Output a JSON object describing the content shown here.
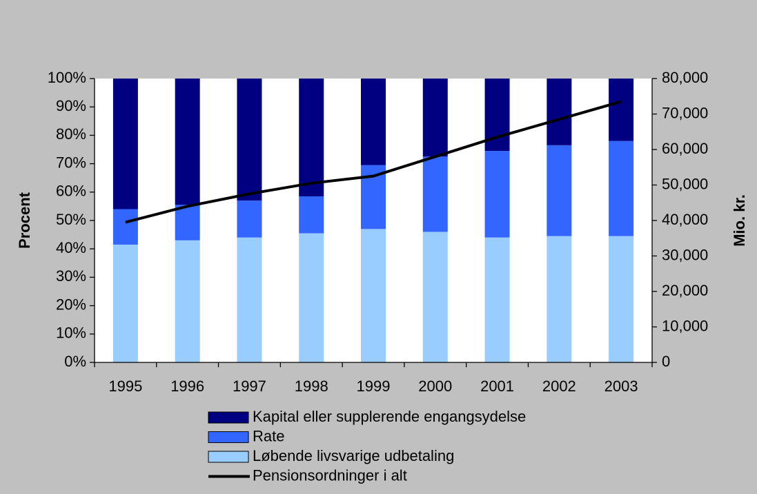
{
  "chart_data": {
    "type": "stacked_bar_line",
    "categories": [
      "1995",
      "1996",
      "1997",
      "1998",
      "1999",
      "2000",
      "2001",
      "2002",
      "2003"
    ],
    "series": [
      {
        "name": "Kapital eller supplerende engangsydelse",
        "color": "#000080",
        "values": [
          46,
          44.5,
          43,
          41.5,
          30.5,
          27.5,
          25.5,
          23.5,
          22
        ]
      },
      {
        "name": "Rate",
        "color": "#3366ff",
        "values": [
          12.5,
          12.5,
          13,
          13,
          22.5,
          26.5,
          30.5,
          32,
          33.5
        ]
      },
      {
        "name": "Løbende livsvarige udbetaling",
        "color": "#99ccff",
        "values": [
          41.5,
          43,
          44,
          45.5,
          47,
          46,
          44,
          44.5,
          44.5
        ]
      },
      {
        "name": "Pensionsordninger i alt",
        "color": "#000000",
        "axis": "y2",
        "type": "line",
        "values": [
          39500,
          44000,
          47500,
          50500,
          52500,
          58000,
          63500,
          68500,
          73500
        ]
      }
    ],
    "y_label": "Procent",
    "y2_label": "Mio. kr.",
    "ylim": [
      0,
      100
    ],
    "yticks": [
      {
        "value": 0,
        "label": "0%"
      },
      {
        "value": 10,
        "label": "10%"
      },
      {
        "value": 20,
        "label": "20%"
      },
      {
        "value": 30,
        "label": "30%"
      },
      {
        "value": 40,
        "label": "40%"
      },
      {
        "value": 50,
        "label": "50%"
      },
      {
        "value": 60,
        "label": "60%"
      },
      {
        "value": 70,
        "label": "70%"
      },
      {
        "value": 80,
        "label": "80%"
      },
      {
        "value": 90,
        "label": "90%"
      },
      {
        "value": 100,
        "label": "100%"
      }
    ],
    "y2lim": [
      0,
      80000
    ],
    "y2ticks": [
      0,
      {
        "value": 10000,
        "label": "10,000"
      },
      {
        "value": 20000,
        "label": "20,000"
      },
      {
        "value": 30000,
        "label": "30,000"
      },
      {
        "value": 40000,
        "label": "40,000"
      },
      {
        "value": 50000,
        "label": "50,000"
      },
      {
        "value": 60000,
        "label": "60,000"
      },
      {
        "value": 70000,
        "label": "70,000"
      },
      {
        "value": 80000,
        "label": "80,000"
      }
    ],
    "grid": false,
    "legend": "bottom"
  }
}
